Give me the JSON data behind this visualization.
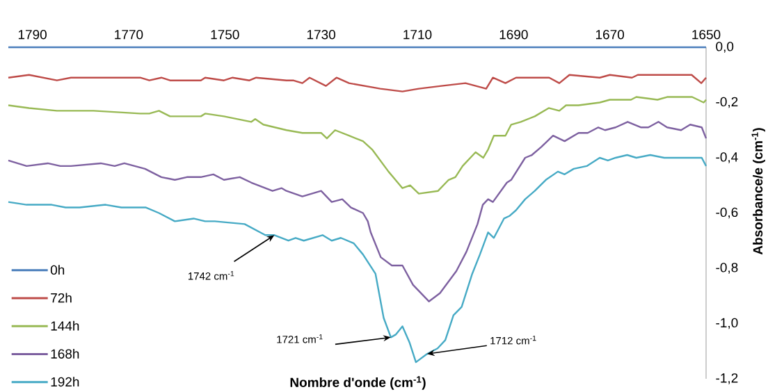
{
  "chart_data": {
    "type": "line",
    "xlabel": "Nombre d'onde (cm$^{-1}$)",
    "ylabel": "Absorbance/e (cm$^{-1}$)",
    "xlim": [
      1795,
      1650
    ],
    "ylim": [
      -1.2,
      0
    ],
    "xticks": [
      1790,
      1770,
      1750,
      1730,
      1710,
      1690,
      1670,
      1650
    ],
    "yticks": [
      {
        "value": 0,
        "label": "0,0"
      },
      {
        "value": -0.2,
        "label": "-0,2"
      },
      {
        "value": -0.4,
        "label": "-0,4"
      },
      {
        "value": -0.6,
        "label": "-0,6"
      },
      {
        "value": -0.8,
        "label": "-0,8"
      },
      {
        "value": -1.0,
        "label": "-1,0"
      },
      {
        "value": -1.2,
        "label": "-1,2"
      }
    ],
    "legend": "bottom left",
    "marker": "none",
    "line_style": "solid",
    "annotations": [
      {
        "text": "1742 cm$^{-1}$",
        "x": 1739.7,
        "y": -0.68
      },
      {
        "text": "1721 cm$^{-1}$",
        "x": 1715.5,
        "y": -1.05
      },
      {
        "text": "1712 cm$^{-1}$",
        "x": 1708,
        "y": -1.11
      }
    ],
    "series": [
      {
        "name": "0h",
        "color": "#4a7ebb",
        "x": [
          1795,
          1650
        ],
        "values": [
          0,
          0
        ]
      },
      {
        "name": "72h",
        "color": "#be4b48",
        "x": [
          1795,
          1790.7,
          1784.9,
          1782,
          1776.3,
          1767.6,
          1765.7,
          1763.2,
          1761.4,
          1755,
          1754.1,
          1750.2,
          1748.4,
          1744.9,
          1743.5,
          1737.2,
          1735.8,
          1733.9,
          1732.4,
          1729,
          1726.8,
          1724.2,
          1717.7,
          1713.1,
          1709.7,
          1705,
          1700,
          1695.7,
          1694.3,
          1691.7,
          1689.5,
          1682.6,
          1680.5,
          1678.4,
          1672.1,
          1670,
          1665.4,
          1664.2,
          1658.1,
          1653,
          1651,
          1650
        ],
        "values": [
          -0.11,
          -0.1,
          -0.12,
          -0.11,
          -0.11,
          -0.11,
          -0.12,
          -0.11,
          -0.12,
          -0.12,
          -0.11,
          -0.12,
          -0.11,
          -0.12,
          -0.11,
          -0.12,
          -0.12,
          -0.13,
          -0.11,
          -0.14,
          -0.11,
          -0.13,
          -0.15,
          -0.16,
          -0.15,
          -0.14,
          -0.13,
          -0.15,
          -0.11,
          -0.13,
          -0.11,
          -0.11,
          -0.13,
          -0.1,
          -0.11,
          -0.1,
          -0.11,
          -0.1,
          -0.1,
          -0.1,
          -0.13,
          -0.11
        ]
      },
      {
        "name": "144h",
        "color": "#98b954",
        "x": [
          1795,
          1790.7,
          1784.9,
          1777.3,
          1767.6,
          1765.7,
          1763.7,
          1761.4,
          1755,
          1754.1,
          1750.2,
          1744.5,
          1743.7,
          1742,
          1737.2,
          1733.9,
          1732.4,
          1730,
          1728.8,
          1727.1,
          1724.2,
          1721.3,
          1719.4,
          1716,
          1713.1,
          1711.5,
          1709.7,
          1705.7,
          1703.5,
          1702.1,
          1700.6,
          1697.9,
          1696.3,
          1695.3,
          1694.1,
          1691.7,
          1690.5,
          1688.5,
          1685.6,
          1682.7,
          1680.5,
          1679.1,
          1676.5,
          1672.1,
          1670,
          1668.2,
          1665.6,
          1664.5,
          1660.1,
          1658.1,
          1652.9,
          1650.5,
          1650
        ],
        "values": [
          -0.21,
          -0.22,
          -0.23,
          -0.23,
          -0.24,
          -0.24,
          -0.23,
          -0.25,
          -0.25,
          -0.24,
          -0.25,
          -0.27,
          -0.26,
          -0.28,
          -0.3,
          -0.31,
          -0.31,
          -0.31,
          -0.33,
          -0.3,
          -0.32,
          -0.34,
          -0.37,
          -0.45,
          -0.51,
          -0.5,
          -0.53,
          -0.52,
          -0.48,
          -0.47,
          -0.43,
          -0.38,
          -0.4,
          -0.37,
          -0.32,
          -0.32,
          -0.28,
          -0.27,
          -0.25,
          -0.22,
          -0.23,
          -0.21,
          -0.21,
          -0.2,
          -0.19,
          -0.19,
          -0.19,
          -0.18,
          -0.19,
          -0.18,
          -0.18,
          -0.2,
          -0.19
        ]
      },
      {
        "name": "168h",
        "color": "#7d60a0",
        "x": [
          1795,
          1791.2,
          1786.8,
          1784.2,
          1782,
          1775.8,
          1772.9,
          1770.9,
          1766.6,
          1763.2,
          1760.4,
          1757.9,
          1755,
          1752.4,
          1750.2,
          1746.9,
          1744.5,
          1740.1,
          1738.2,
          1737.2,
          1733.9,
          1730,
          1727.8,
          1725.6,
          1723.8,
          1721.3,
          1720.3,
          1719.7,
          1717.6,
          1715.3,
          1713.1,
          1710.9,
          1707.6,
          1705.3,
          1701.9,
          1699.8,
          1697.5,
          1696.4,
          1695.3,
          1694.3,
          1691.4,
          1690.5,
          1687.6,
          1686.2,
          1684.2,
          1681.8,
          1679.4,
          1676.5,
          1674.6,
          1672.4,
          1671,
          1668.8,
          1666.3,
          1663.5,
          1662,
          1659.9,
          1658.1,
          1655.2,
          1653.3,
          1650.9,
          1650
        ],
        "values": [
          -0.41,
          -0.43,
          -0.42,
          -0.43,
          -0.43,
          -0.42,
          -0.43,
          -0.42,
          -0.44,
          -0.47,
          -0.48,
          -0.47,
          -0.47,
          -0.46,
          -0.48,
          -0.47,
          -0.49,
          -0.52,
          -0.51,
          -0.52,
          -0.54,
          -0.52,
          -0.56,
          -0.55,
          -0.58,
          -0.6,
          -0.63,
          -0.67,
          -0.76,
          -0.79,
          -0.79,
          -0.86,
          -0.92,
          -0.89,
          -0.81,
          -0.74,
          -0.64,
          -0.57,
          -0.55,
          -0.56,
          -0.49,
          -0.48,
          -0.4,
          -0.39,
          -0.36,
          -0.32,
          -0.34,
          -0.31,
          -0.31,
          -0.29,
          -0.3,
          -0.29,
          -0.27,
          -0.29,
          -0.29,
          -0.27,
          -0.29,
          -0.3,
          -0.28,
          -0.29,
          -0.33
        ]
      },
      {
        "name": "192h",
        "color": "#46aac5",
        "x": [
          1795,
          1791.2,
          1786,
          1783.1,
          1780.2,
          1774.8,
          1771.5,
          1770,
          1766.4,
          1763.7,
          1760.4,
          1756.5,
          1754.1,
          1752.1,
          1745.9,
          1741.6,
          1739.7,
          1736.8,
          1735.3,
          1733.6,
          1729.7,
          1727.8,
          1725.9,
          1723.2,
          1721.3,
          1718.7,
          1717,
          1715.5,
          1714.5,
          1713.1,
          1711.6,
          1710.3,
          1708,
          1705.8,
          1704.2,
          1702.5,
          1700.8,
          1698.6,
          1697,
          1695.3,
          1694.1,
          1692,
          1690.8,
          1689.5,
          1687.6,
          1685.6,
          1683.3,
          1680.8,
          1679.4,
          1677.5,
          1674.8,
          1672.1,
          1670.4,
          1668.8,
          1666.4,
          1664.5,
          1661.6,
          1658.7,
          1656.7,
          1650.9,
          1650
        ],
        "values": [
          -0.56,
          -0.57,
          -0.57,
          -0.58,
          -0.58,
          -0.57,
          -0.58,
          -0.58,
          -0.58,
          -0.6,
          -0.63,
          -0.62,
          -0.63,
          -0.63,
          -0.64,
          -0.68,
          -0.68,
          -0.7,
          -0.69,
          -0.7,
          -0.68,
          -0.7,
          -0.69,
          -0.71,
          -0.75,
          -0.82,
          -0.98,
          -1.05,
          -1.04,
          -1.01,
          -1.07,
          -1.14,
          -1.11,
          -1.09,
          -1.06,
          -0.97,
          -0.94,
          -0.82,
          -0.75,
          -0.67,
          -0.69,
          -0.62,
          -0.61,
          -0.59,
          -0.55,
          -0.52,
          -0.48,
          -0.45,
          -0.46,
          -0.44,
          -0.43,
          -0.4,
          -0.41,
          -0.4,
          -0.39,
          -0.4,
          -0.39,
          -0.4,
          -0.4,
          -0.4,
          -0.43
        ]
      }
    ]
  }
}
